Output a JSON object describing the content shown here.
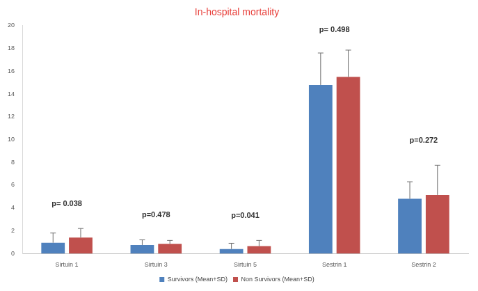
{
  "chart_data": {
    "type": "bar",
    "title": "In-hospital mortality",
    "categories": [
      "Sirtuin 1",
      "Sirtuin 3",
      "Sirtuin 5",
      "Sestrin 1",
      "Sestrin 2"
    ],
    "series": [
      {
        "name": "Survivors (Mean+SD)",
        "color": "#4f81bd",
        "values": [
          0.95,
          0.75,
          0.4,
          14.8,
          4.8
        ],
        "sd": [
          0.85,
          0.45,
          0.5,
          2.8,
          1.5
        ]
      },
      {
        "name": "Non Survivors (Mean+SD)",
        "color": "#c0504d",
        "values": [
          1.4,
          0.85,
          0.65,
          15.5,
          5.15
        ],
        "sd": [
          0.8,
          0.3,
          0.5,
          2.35,
          2.6
        ]
      }
    ],
    "annotations": [
      "p= 0.038",
      "p=0.478",
      "p=0.041",
      "p= 0.498",
      "p=0.272"
    ],
    "ylim": [
      0,
      20
    ],
    "yticks": [
      0,
      2,
      4,
      6,
      8,
      10,
      12,
      14,
      16,
      18,
      20
    ],
    "grid": false,
    "legend": "bottom"
  }
}
